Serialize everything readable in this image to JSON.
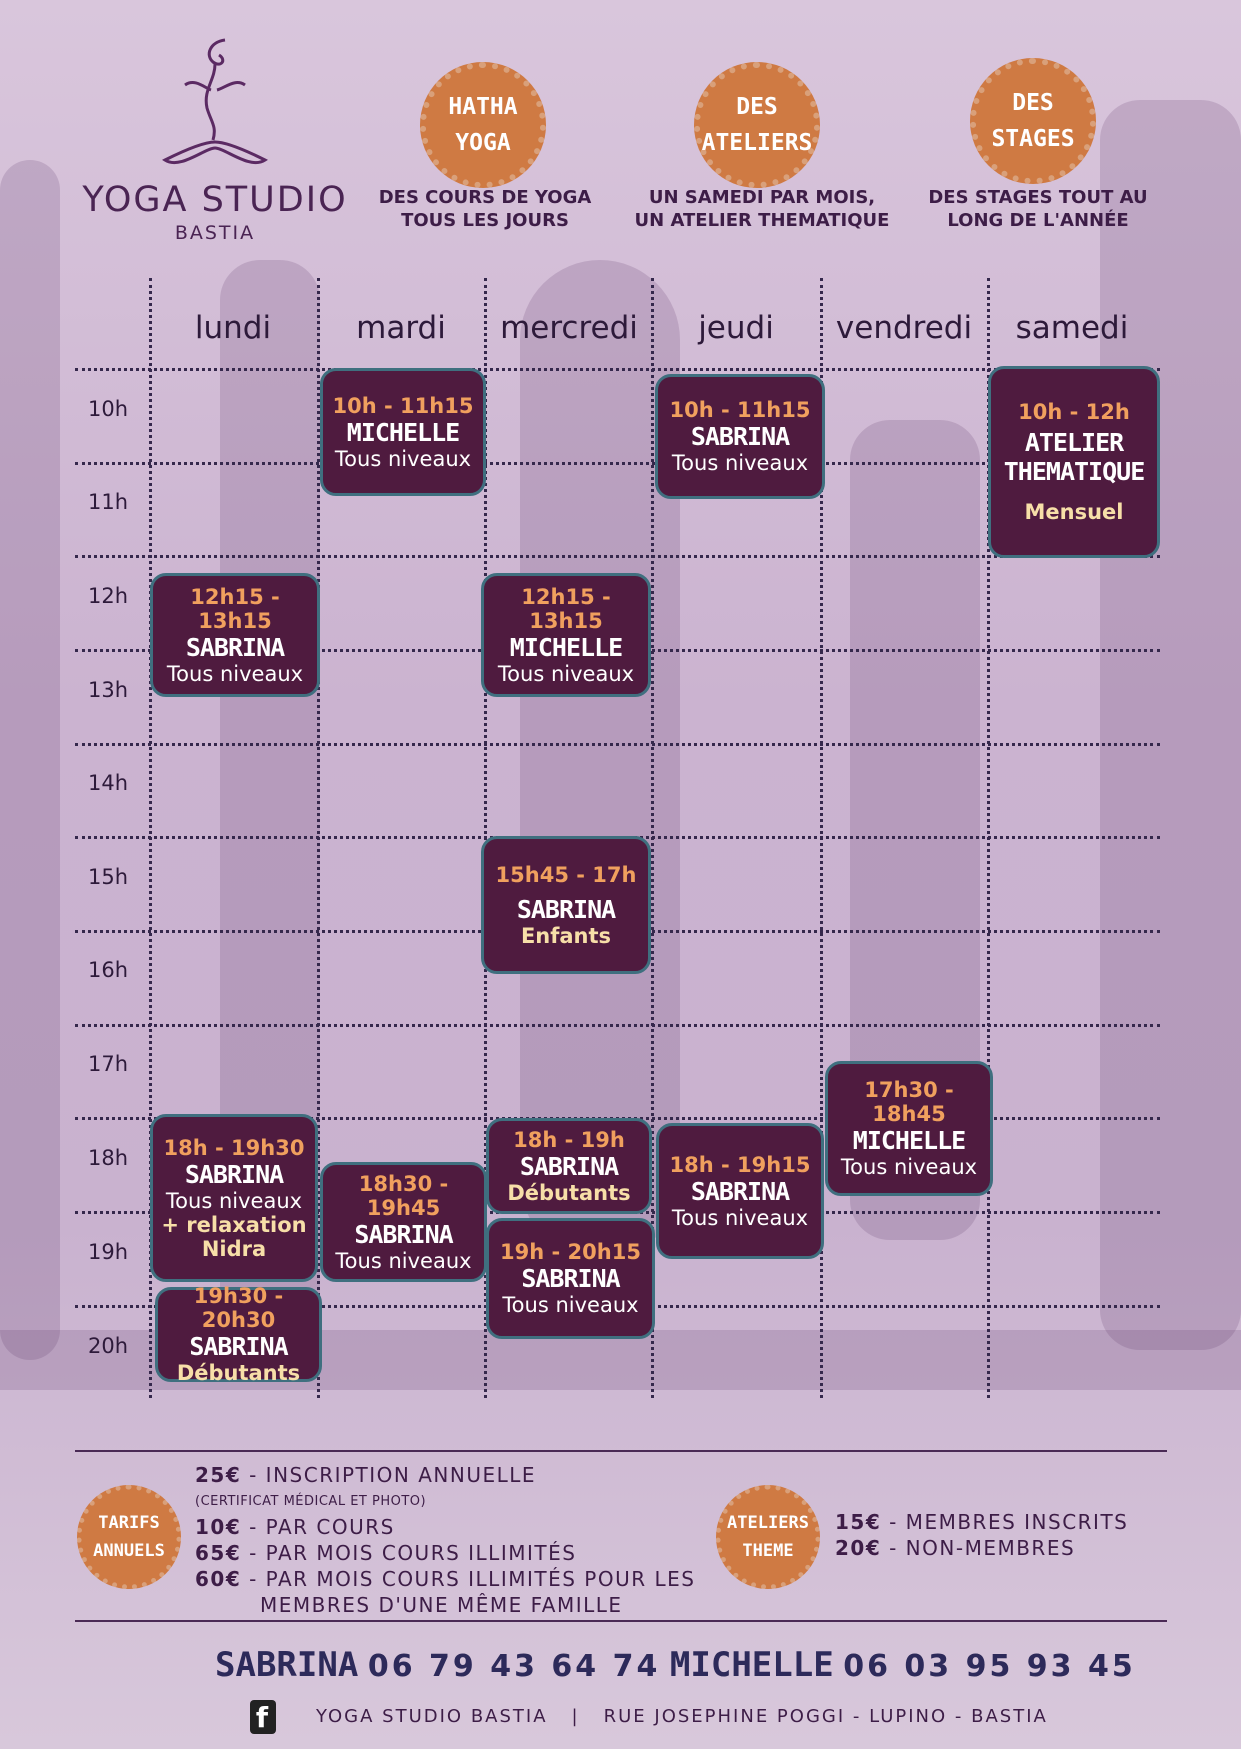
{
  "logo": {
    "name": "YOGA STUDIO",
    "city": "BASTIA"
  },
  "badges": [
    {
      "line1": "HATHA",
      "line2": "YOGA",
      "caption1": "DES COURS DE YOGA",
      "caption2": "TOUS LES JOURS"
    },
    {
      "line1": "DES",
      "line2": "ATELIERS",
      "caption1": "UN SAMEDI PAR MOIS,",
      "caption2": "UN ATELIER THEMATIQUE"
    },
    {
      "line1": "DES",
      "line2": "STAGES",
      "caption1": "DES STAGES TOUT AU",
      "caption2": "LONG DE L'ANNÉE"
    }
  ],
  "schedule": {
    "days": [
      "lundi",
      "mardi",
      "mercredi",
      "jeudi",
      "vendredi",
      "samedi"
    ],
    "hours": [
      "10h",
      "11h",
      "12h",
      "13h",
      "14h",
      "15h",
      "16h",
      "17h",
      "18h",
      "19h",
      "20h"
    ],
    "classes": {
      "tue_1000": {
        "time": "10h - 11h15",
        "name": "MICHELLE",
        "level": "Tous niveaux"
      },
      "thu_1000": {
        "time": "10h - 11h15",
        "name": "SABRINA",
        "level": "Tous niveaux"
      },
      "sat_1000": {
        "time": "10h - 12h",
        "name1": "ATELIER",
        "name2": "THEMATIQUE",
        "level": "Mensuel"
      },
      "mon_1215": {
        "time": "12h15 - 13h15",
        "name": "SABRINA",
        "level": "Tous niveaux"
      },
      "wed_1215": {
        "time": "12h15 - 13h15",
        "name": "MICHELLE",
        "level": "Tous niveaux"
      },
      "wed_1545": {
        "time": "15h45 - 17h",
        "name": "SABRINA",
        "level": "Enfants"
      },
      "fri_1730": {
        "time": "17h30 - 18h45",
        "name": "MICHELLE",
        "level": "Tous niveaux"
      },
      "mon_1800": {
        "time": "18h - 19h30",
        "name": "SABRINA",
        "level": "Tous niveaux",
        "extra1": "+ relaxation",
        "extra2": "Nidra"
      },
      "tue_1830": {
        "time": "18h30 - 19h45",
        "name": "SABRINA",
        "level": "Tous niveaux"
      },
      "wed_1800": {
        "time": "18h - 19h",
        "name": "SABRINA",
        "level": "Débutants"
      },
      "thu_1800": {
        "time": "18h - 19h15",
        "name": "SABRINA",
        "level": "Tous niveaux"
      },
      "wed_1900": {
        "time": "19h - 20h15",
        "name": "SABRINA",
        "level": "Tous niveaux"
      },
      "mon_1930": {
        "time": "19h30 - 20h30",
        "name": "SABRINA",
        "level": "Débutants"
      }
    }
  },
  "tarifs": {
    "badge1": "TARIFS",
    "badge2": "ANNUELS",
    "rows": [
      {
        "price": "25€",
        "label": " - INSCRIPTION ANNUELLE"
      },
      {
        "price": "10€",
        "label": " - PAR COURS"
      },
      {
        "price": "65€",
        "label": " - PAR MOIS COURS ILLIMITÉS"
      },
      {
        "price": "60€",
        "label": " - PAR MOIS COURS ILLIMITÉS POUR LES"
      }
    ],
    "note": "(CERTIFICAT MÉDICAL ET PHOTO)",
    "continuation": "MEMBRES D'UNE MÊME FAMILLE"
  },
  "ateliers": {
    "badge1": "ATELIERS",
    "badge2": "THEME",
    "rows": [
      {
        "price": "15€",
        "label": " - MEMBRES INSCRITS"
      },
      {
        "price": "20€",
        "label": " - NON-MEMBRES"
      }
    ]
  },
  "contact": {
    "name1": "SABRINA",
    "phone1": "06 79 43 64 74",
    "name2": "MICHELLE",
    "phone2": "06 03 95 93 45"
  },
  "footer": {
    "fb": "f",
    "studio": "YOGA STUDIO BASTIA",
    "separator": "|",
    "address": "RUE JOSEPHINE POGGI - LUPINO - BASTIA"
  },
  "colors": {
    "plum": "#4f1b3f",
    "orange": "#cf7a43",
    "time": "#f0a05e",
    "border": "#3f6f7f"
  }
}
